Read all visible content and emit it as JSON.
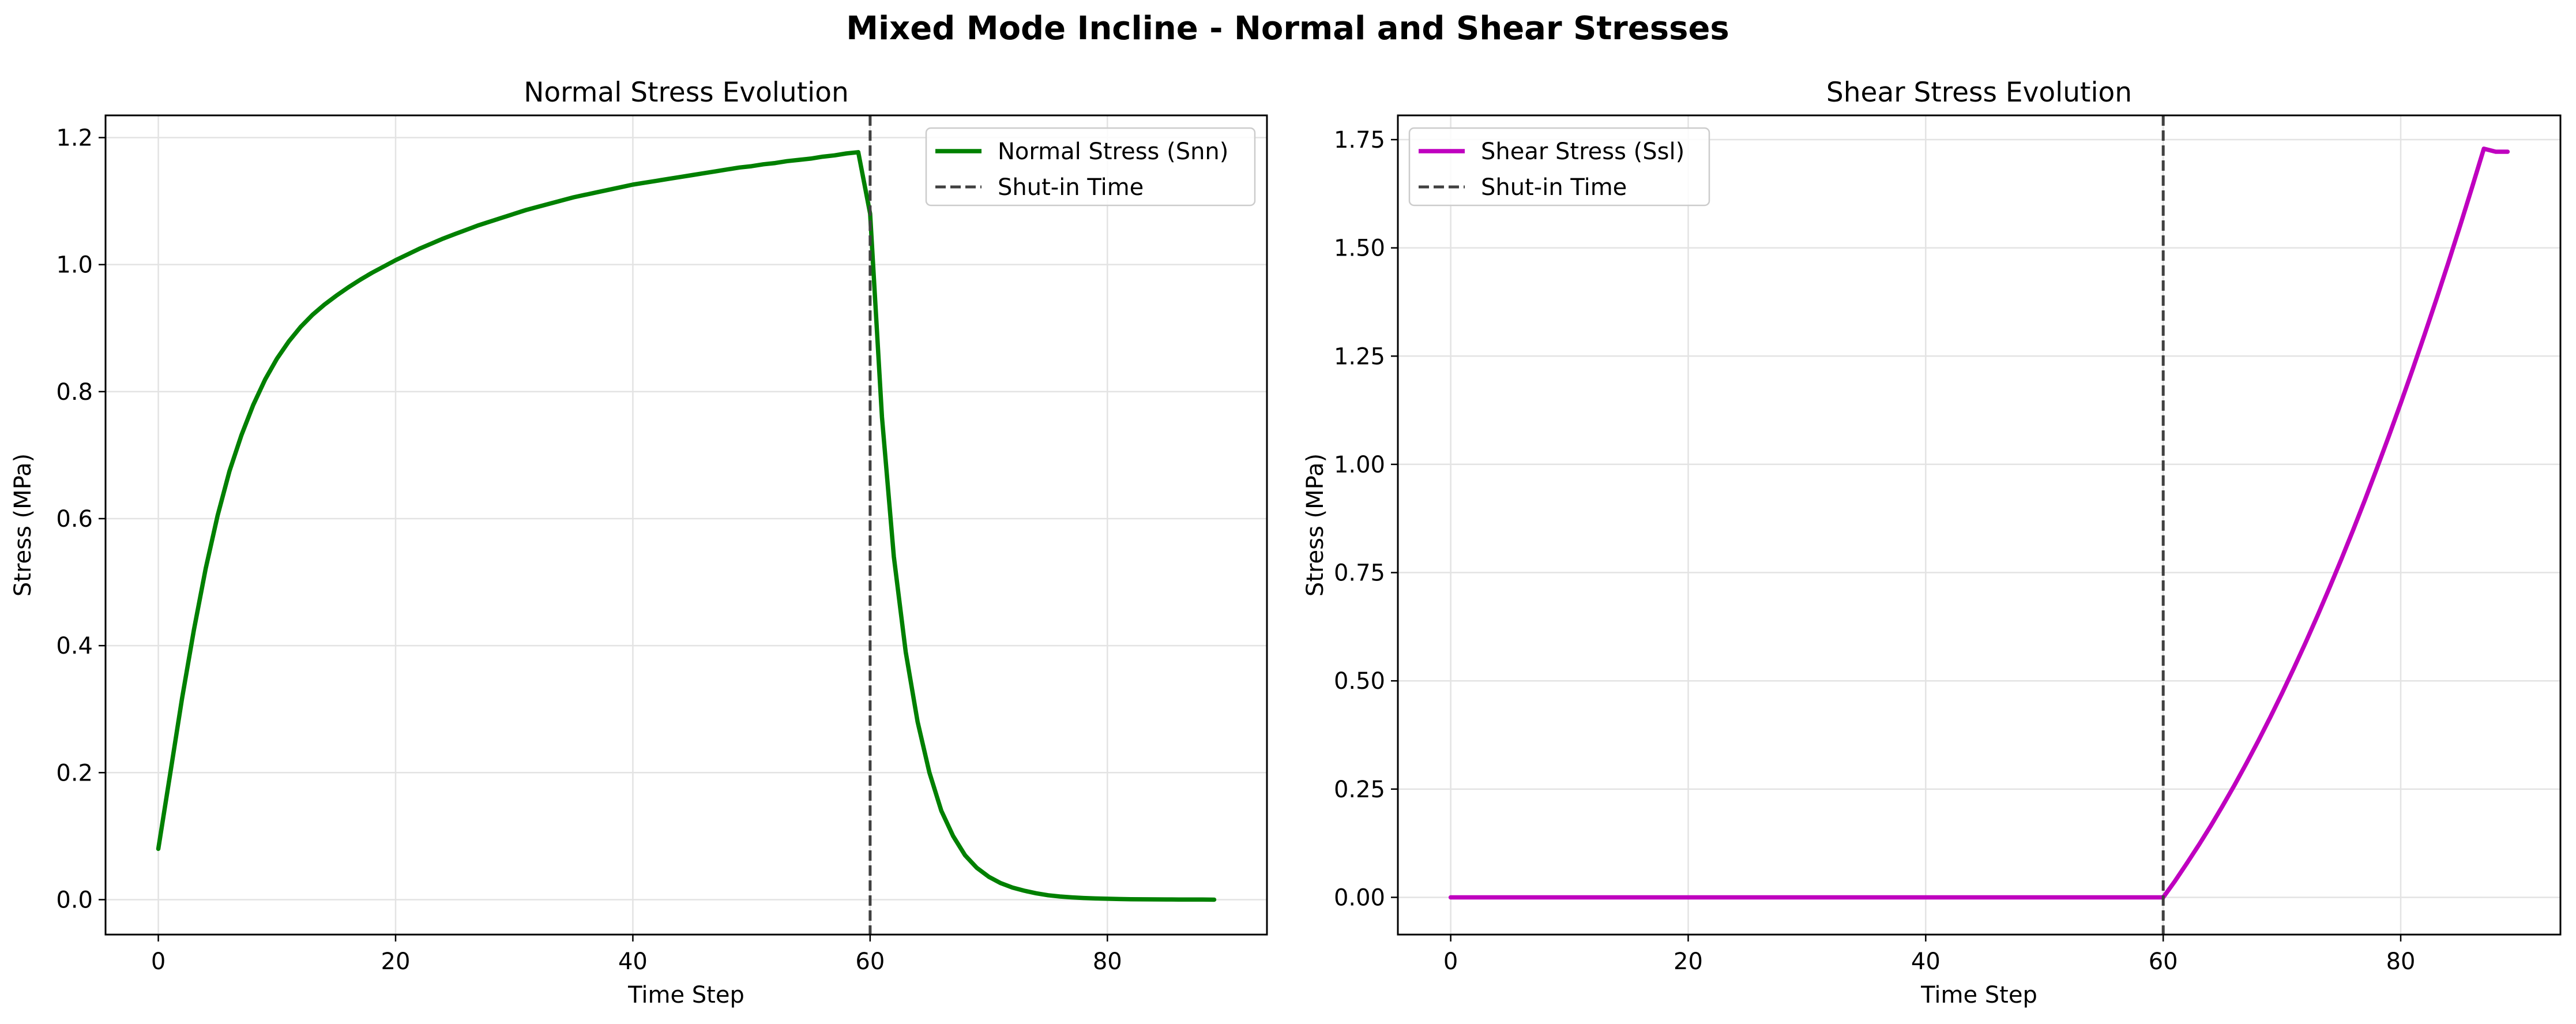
{
  "figure": {
    "title": "Mixed Mode Incline - Normal and Shear Stresses"
  },
  "chart_data": [
    {
      "type": "line",
      "title": "Normal Stress Evolution",
      "xlabel": "Time Step",
      "ylabel": "Stress (MPa)",
      "xlim": [
        -4.45,
        93.45
      ],
      "ylim": [
        -0.055,
        1.235
      ],
      "xticks": [
        0,
        20,
        40,
        60,
        80
      ],
      "xtick_labels": [
        "0",
        "20",
        "40",
        "60",
        "80"
      ],
      "yticks": [
        0.0,
        0.2,
        0.4,
        0.6,
        0.8,
        1.0,
        1.2
      ],
      "ytick_labels": [
        "0.0",
        "0.2",
        "0.4",
        "0.6",
        "0.8",
        "1.0",
        "1.2"
      ],
      "grid": true,
      "legend_position": "upper right",
      "series": [
        {
          "name": "Normal Stress (Snn)",
          "color": "#008000",
          "style": "solid",
          "x": [
            0,
            1,
            2,
            3,
            4,
            5,
            6,
            7,
            8,
            9,
            10,
            11,
            12,
            13,
            14,
            15,
            16,
            17,
            18,
            19,
            20,
            21,
            22,
            23,
            24,
            25,
            26,
            27,
            28,
            29,
            30,
            31,
            32,
            33,
            34,
            35,
            36,
            37,
            38,
            39,
            40,
            41,
            42,
            43,
            44,
            45,
            46,
            47,
            48,
            49,
            50,
            51,
            52,
            53,
            54,
            55,
            56,
            57,
            58,
            59,
            60,
            61,
            62,
            63,
            64,
            65,
            66,
            67,
            68,
            69,
            70,
            71,
            72,
            73,
            74,
            75,
            76,
            77,
            78,
            79,
            80,
            81,
            82,
            83,
            84,
            85,
            86,
            87,
            88,
            89
          ],
          "values": [
            0.08,
            0.198,
            0.317,
            0.425,
            0.522,
            0.605,
            0.675,
            0.731,
            0.779,
            0.819,
            0.852,
            0.879,
            0.902,
            0.921,
            0.937,
            0.951,
            0.964,
            0.976,
            0.987,
            0.997,
            1.007,
            1.016,
            1.025,
            1.033,
            1.041,
            1.048,
            1.055,
            1.062,
            1.068,
            1.074,
            1.08,
            1.086,
            1.091,
            1.096,
            1.101,
            1.106,
            1.11,
            1.114,
            1.118,
            1.122,
            1.126,
            1.129,
            1.132,
            1.135,
            1.138,
            1.141,
            1.144,
            1.147,
            1.15,
            1.153,
            1.155,
            1.158,
            1.16,
            1.163,
            1.165,
            1.167,
            1.17,
            1.172,
            1.175,
            1.177,
            1.08,
            0.76,
            0.54,
            0.39,
            0.28,
            0.2,
            0.14,
            0.1,
            0.07,
            0.05,
            0.036,
            0.026,
            0.019,
            0.014,
            0.01,
            0.007,
            0.005,
            0.0036,
            0.0026,
            0.0019,
            0.0014,
            0.001,
            0.0007,
            0.0005,
            0.0004,
            0.0003,
            0.0002,
            0.0001,
            0.0001,
            0.0
          ]
        },
        {
          "name": "Shut-in Time",
          "color": "#404040",
          "style": "dashed",
          "vertical_x": 60
        }
      ]
    },
    {
      "type": "line",
      "title": "Shear Stress Evolution",
      "xlabel": "Time Step",
      "ylabel": "Stress (MPa)",
      "xlim": [
        -4.45,
        93.45
      ],
      "ylim": [
        -0.086,
        1.806
      ],
      "xticks": [
        0,
        20,
        40,
        60,
        80
      ],
      "xtick_labels": [
        "0",
        "20",
        "40",
        "60",
        "80"
      ],
      "yticks": [
        0.0,
        0.25,
        0.5,
        0.75,
        1.0,
        1.25,
        1.5,
        1.75
      ],
      "ytick_labels": [
        "0.00",
        "0.25",
        "0.50",
        "0.75",
        "1.00",
        "1.25",
        "1.50",
        "1.75"
      ],
      "grid": true,
      "legend_position": "upper left",
      "series": [
        {
          "name": "Shear Stress (Ssl)",
          "color": "#bf00bf",
          "style": "solid",
          "x": [
            0,
            5,
            10,
            15,
            20,
            25,
            30,
            35,
            40,
            45,
            50,
            55,
            60,
            61,
            62,
            63,
            64,
            65,
            66,
            67,
            68,
            69,
            70,
            71,
            72,
            73,
            74,
            75,
            76,
            77,
            78,
            79,
            80,
            81,
            82,
            83,
            84,
            85,
            86,
            87,
            88,
            89
          ],
          "values": [
            0,
            0,
            0,
            0,
            0,
            0,
            0,
            0,
            0,
            0,
            0,
            0,
            0,
            0.038,
            0.079,
            0.121,
            0.165,
            0.211,
            0.259,
            0.309,
            0.361,
            0.415,
            0.471,
            0.529,
            0.589,
            0.651,
            0.715,
            0.781,
            0.849,
            0.919,
            0.991,
            1.065,
            1.141,
            1.219,
            1.299,
            1.381,
            1.465,
            1.551,
            1.639,
            1.729,
            1.722,
            1.722
          ]
        },
        {
          "name": "Shut-in Time",
          "color": "#404040",
          "style": "dashed",
          "vertical_x": 60
        }
      ]
    }
  ]
}
